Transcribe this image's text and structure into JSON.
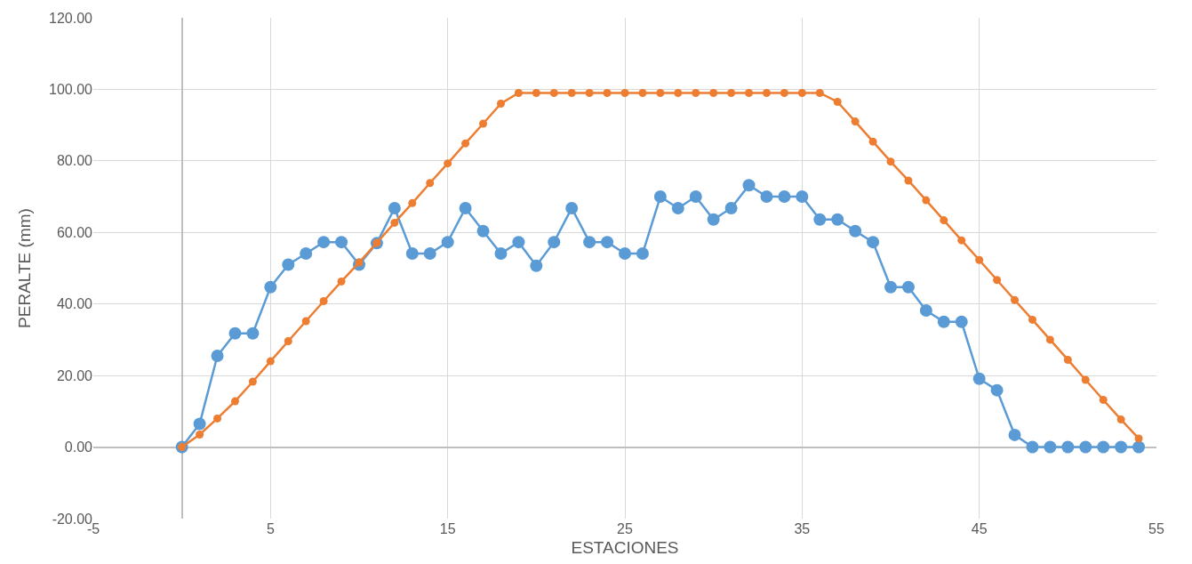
{
  "chart_data": {
    "type": "line",
    "xlabel": "ESTACIONES",
    "ylabel": "PERALTE (mm)",
    "x": [
      0,
      1,
      2,
      3,
      4,
      5,
      6,
      7,
      8,
      9,
      10,
      11,
      12,
      13,
      14,
      15,
      16,
      17,
      18,
      19,
      20,
      21,
      22,
      23,
      24,
      25,
      26,
      27,
      28,
      29,
      30,
      31,
      32,
      33,
      34,
      35,
      36,
      37,
      38,
      39,
      40,
      41,
      42,
      43,
      44,
      45,
      46,
      47,
      48,
      49,
      50,
      51,
      52,
      53,
      54
    ],
    "series": [
      {
        "color": "#5b9bd5",
        "values": [
          0,
          6.5,
          25.5,
          31.8,
          31.8,
          44.7,
          51,
          54.1,
          57.3,
          57.3,
          51,
          57,
          66.8,
          54.1,
          54.1,
          57.3,
          66.8,
          60.4,
          54.1,
          57.3,
          50.7,
          57.3,
          66.8,
          57.3,
          57.3,
          54.1,
          54.1,
          70,
          66.8,
          70,
          63.6,
          66.8,
          73.2,
          70,
          70,
          70,
          63.6,
          63.6,
          60.4,
          57.3,
          44.7,
          44.7,
          38.2,
          35,
          35,
          19.1,
          15.9,
          3.4,
          0,
          0,
          0,
          0,
          0,
          0,
          0
        ]
      },
      {
        "color": "#ed7d31",
        "values": [
          0,
          3.5,
          8,
          12.8,
          18.3,
          24,
          29.6,
          35.2,
          40.8,
          46.3,
          51.6,
          57.1,
          62.7,
          68.2,
          73.8,
          79.3,
          84.9,
          90.4,
          96,
          99,
          99,
          99,
          99,
          99,
          99,
          99,
          99,
          99,
          99,
          99,
          99,
          99,
          99,
          99,
          99,
          99,
          99,
          96.5,
          91,
          85.4,
          79.8,
          74.5,
          69,
          63.4,
          57.8,
          52.3,
          46.7,
          41.1,
          35.6,
          30,
          24.4,
          18.8,
          13.2,
          7.7,
          2.4
        ]
      }
    ],
    "xlim": [
      -5,
      55
    ],
    "xticks": [
      -5,
      5,
      15,
      25,
      35,
      45,
      55
    ],
    "ylim": [
      -20,
      120
    ],
    "yticks": [
      {
        "value": -20,
        "label": "-20.00"
      },
      {
        "value": 0,
        "label": "0.00"
      },
      {
        "value": 20,
        "label": "20.00"
      },
      {
        "value": 40,
        "label": "40.00"
      },
      {
        "value": 60,
        "label": "60.00"
      },
      {
        "value": 80,
        "label": "80.00"
      },
      {
        "value": 100,
        "label": "100.00"
      },
      {
        "value": 120,
        "label": "120.00"
      }
    ],
    "grid": true,
    "marker": "circle",
    "line_style": "solid"
  }
}
